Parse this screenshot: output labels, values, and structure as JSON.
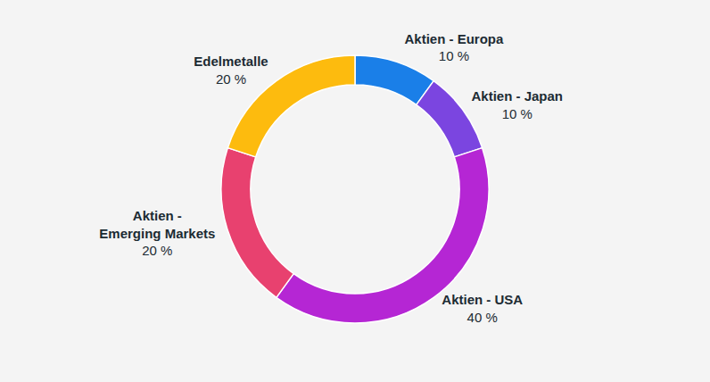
{
  "chart_data": {
    "type": "pie",
    "categories": [
      "Aktien - Europa",
      "Aktien - Japan",
      "Aktien - USA",
      "Aktien - Emerging Markets",
      "Edelmetalle"
    ],
    "values": [
      10,
      10,
      40,
      20,
      20
    ],
    "value_labels": [
      "10 %",
      "10 %",
      "40 %",
      "20 %",
      "20 %"
    ],
    "colors": [
      "#1a7fe8",
      "#7b45e0",
      "#b526d4",
      "#e8416f",
      "#fdbb0e"
    ],
    "data_labels": true
  }
}
